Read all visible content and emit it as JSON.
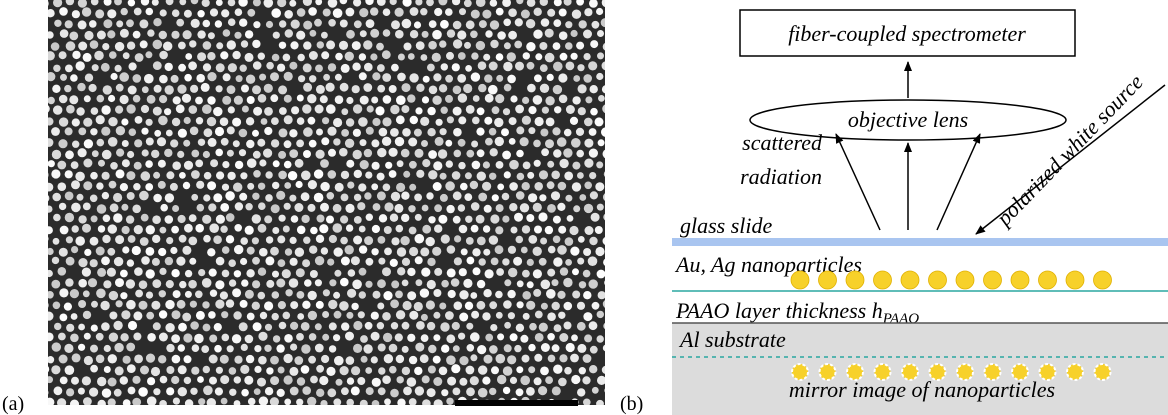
{
  "panel_a": {
    "label": "(a)"
  },
  "panel_b": {
    "label": "(b)",
    "spectrometer": "fiber-coupled spectrometer",
    "lens": "objective lens",
    "scattered": [
      "scattered",
      "radiation"
    ],
    "source": "polarized white source",
    "glass": "glass slide",
    "nanoparticles": "Au, Ag nanoparticles",
    "paao": {
      "text": "PAAO layer thickness h",
      "subscript": "PAAO"
    },
    "substrate": "Al substrate",
    "mirror": "mirror image of nanoparticles"
  }
}
